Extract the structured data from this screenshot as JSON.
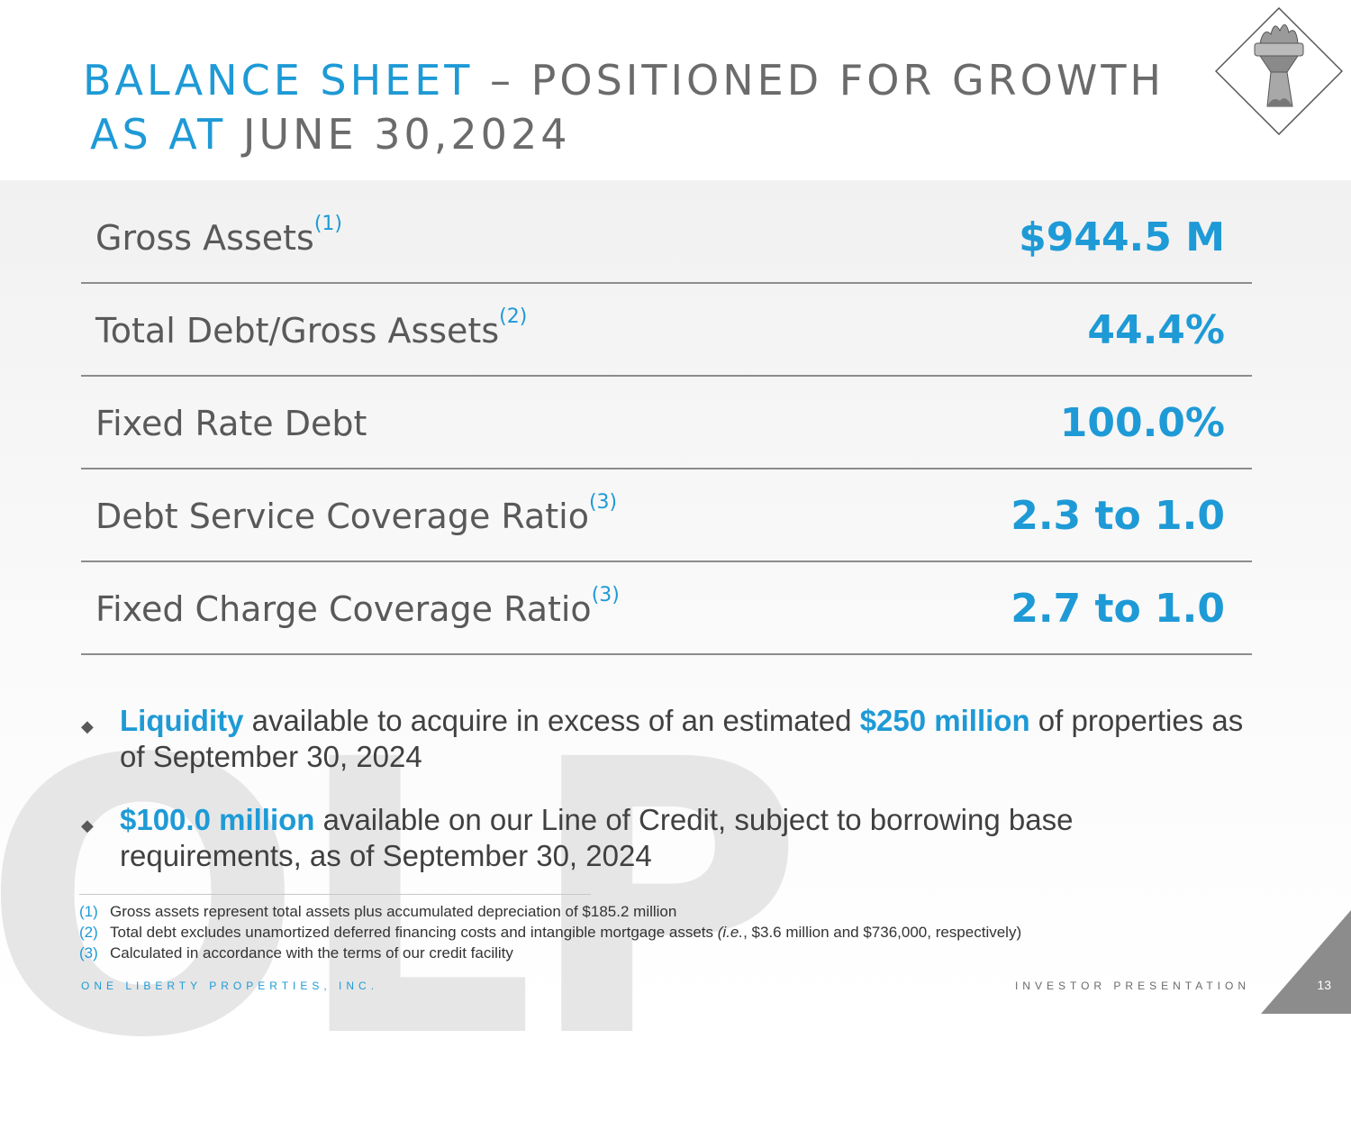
{
  "header": {
    "title_line1_accent": "BALANCE SHEET",
    "title_line1_rest": " – POSITIONED FOR GROWTH",
    "title_line2_accent": "AS AT",
    "title_line2_rest": " JUNE 30,2024",
    "logo_icon": "statue-of-liberty-torch-icon"
  },
  "metrics": [
    {
      "label": "Gross Assets",
      "note": "(1)",
      "value": "$944.5 M"
    },
    {
      "label": "Total Debt/Gross Assets",
      "note": "(2)",
      "value": "44.4%"
    },
    {
      "label": "Fixed Rate Debt",
      "note": "",
      "value": "100.0%"
    },
    {
      "label": "Debt Service Coverage Ratio",
      "note": "(3)",
      "value": "2.3 to 1.0"
    },
    {
      "label": "Fixed Charge Coverage Ratio",
      "note": "(3)",
      "value": "2.7 to 1.0"
    }
  ],
  "bullets": [
    {
      "hl1": "Liquidity",
      "t1": " available to acquire in excess of an estimated ",
      "hl2": "$250 million",
      "t2": " of properties as of September 30, 2024"
    },
    {
      "hl1": "$100.0 million",
      "t1": " available on our Line of Credit, subject to borrowing base requirements, as of September 30, 2024"
    }
  ],
  "footnotes": [
    {
      "num": "(1)",
      "text": "Gross  assets represent total assets plus accumulated depreciation of $185.2 million"
    },
    {
      "num": "(2)",
      "text_a": "Total debt excludes unamortized deferred financing costs and intangible mortgage assets ",
      "text_it": "(i.e.",
      "text_b": ", $3.6 million and $736,000, respectively)"
    },
    {
      "num": "(3)",
      "text": "Calculated in accordance with the terms of our credit facility"
    }
  ],
  "footer": {
    "company": "ONE LIBERTY PROPERTIES, INC.",
    "presentation": "INVESTOR PRESENTATION",
    "page_number": "13"
  },
  "watermark": "OLP",
  "colors": {
    "accent": "#1e9ad6",
    "text_gray": "#595959",
    "corner": "#8c8c8c"
  }
}
